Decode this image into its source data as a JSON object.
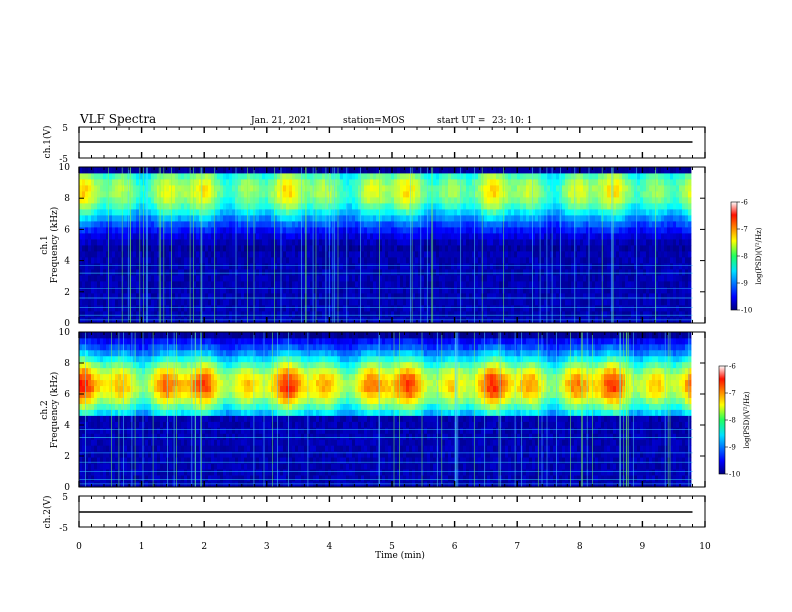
{
  "header": {
    "title": "VLF Spectra",
    "date": "Jan. 21, 2021",
    "station": "station=MOS",
    "start_label": "start UT =",
    "start_time": "23: 10: 1"
  },
  "chart_data": [
    {
      "type": "line",
      "panel": "ch1-waveform",
      "ylabel": "ch.1(V)",
      "ylim": [
        -5,
        5
      ],
      "yticks": [
        5,
        -5
      ],
      "xlim": [
        0,
        10
      ],
      "series": [
        {
          "x": [
            0,
            9.8
          ],
          "y": [
            0,
            0
          ]
        }
      ]
    },
    {
      "type": "heatmap",
      "panel": "ch1-spectrogram",
      "ylabel": "ch.1\nFrequency (kHz)",
      "ylim": [
        0,
        10
      ],
      "yticks": [
        "0",
        "2",
        "4",
        "6",
        "8",
        "10"
      ],
      "xlim": [
        0,
        10
      ],
      "data_end_min": 9.8,
      "colorbar": {
        "label": "log(PSD)(V²/Hz)",
        "range": [
          -10,
          -6
        ],
        "ticks": [
          "-6",
          "-7",
          "-8",
          "-9",
          "-10"
        ]
      },
      "band_center_khz": 8.5,
      "band_level": -7.3
    },
    {
      "type": "heatmap",
      "panel": "ch2-spectrogram",
      "ylabel": "ch.2\nFrequency (kHz)",
      "ylim": [
        0,
        10
      ],
      "yticks": [
        "0",
        "2",
        "4",
        "6",
        "8",
        "10"
      ],
      "xlim": [
        0,
        10
      ],
      "data_end_min": 9.8,
      "colorbar": {
        "label": "log(PSD)(V²/Hz)",
        "range": [
          -10,
          -6
        ],
        "ticks": [
          "-6",
          "-7",
          "-8",
          "-9",
          "-10"
        ]
      },
      "band_center_khz": 6.6,
      "band_level": -6.6
    },
    {
      "type": "line",
      "panel": "ch2-waveform",
      "ylabel": "ch.2(V)",
      "ylim": [
        -5,
        5
      ],
      "yticks": [
        5,
        -5
      ],
      "xlim": [
        0,
        10
      ],
      "xlabel": "Time (min)",
      "xticks": [
        "0",
        "1",
        "2",
        "3",
        "4",
        "5",
        "6",
        "7",
        "8",
        "9",
        "10"
      ],
      "series": [
        {
          "x": [
            0,
            9.8
          ],
          "y": [
            0,
            0
          ]
        }
      ]
    }
  ]
}
